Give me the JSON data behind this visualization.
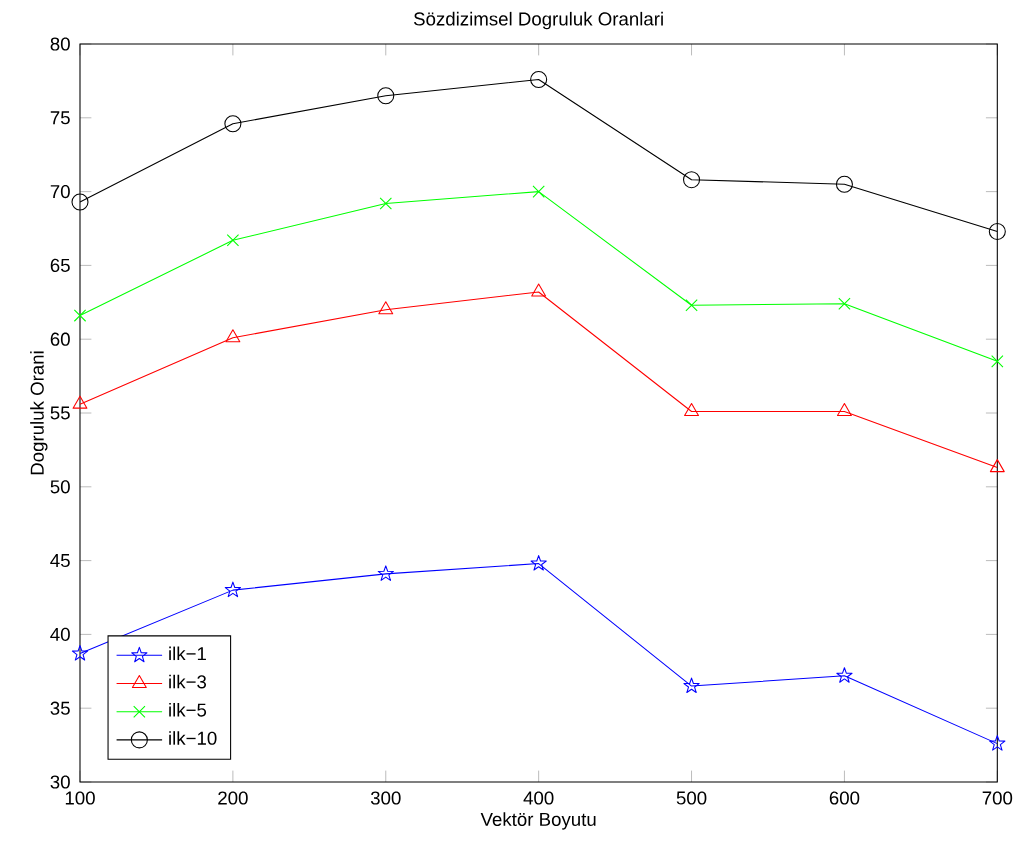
{
  "chart_data": {
    "type": "line",
    "title": "Sözdizimsel Dogruluk Oranlari",
    "xlabel": "Vektör Boyutu",
    "ylabel": "Dogruluk Orani",
    "x": [
      100,
      200,
      300,
      400,
      500,
      600,
      700
    ],
    "xlim": [
      100,
      700
    ],
    "xticks": [
      100,
      200,
      300,
      400,
      500,
      600,
      700
    ],
    "ylim": [
      30,
      80
    ],
    "yticks": [
      30,
      35,
      40,
      45,
      50,
      55,
      60,
      65,
      70,
      75,
      80
    ],
    "grid": false,
    "legend": "bottom left",
    "line_style": "solid",
    "series": [
      {
        "name": "ilk−1",
        "color": "#0000ff",
        "marker": "star",
        "values": [
          38.7,
          43.0,
          44.1,
          44.8,
          36.5,
          37.2,
          32.6
        ]
      },
      {
        "name": "ilk−3",
        "color": "#ff0000",
        "marker": "triangle",
        "values": [
          55.6,
          60.1,
          62.0,
          63.2,
          55.1,
          55.1,
          51.3
        ]
      },
      {
        "name": "ilk−5",
        "color": "#00ff00",
        "marker": "cross",
        "values": [
          61.6,
          66.7,
          69.2,
          70.0,
          62.3,
          62.4,
          58.5
        ]
      },
      {
        "name": "ilk−10",
        "color": "#000000",
        "marker": "circle",
        "values": [
          69.3,
          74.6,
          76.5,
          77.6,
          70.8,
          70.5,
          67.3
        ]
      }
    ]
  }
}
